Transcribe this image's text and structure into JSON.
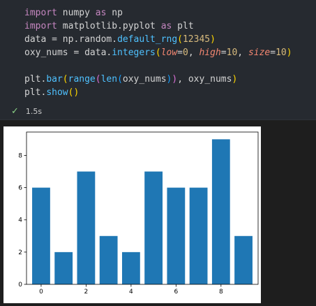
{
  "code_lines": [
    [
      {
        "t": "import",
        "c": "kw"
      },
      {
        "t": " numpy ",
        "c": "default"
      },
      {
        "t": "as",
        "c": "kw"
      },
      {
        "t": " np",
        "c": "default"
      }
    ],
    [
      {
        "t": "import",
        "c": "kw"
      },
      {
        "t": " matplotlib.pyplot ",
        "c": "default"
      },
      {
        "t": "as",
        "c": "kw"
      },
      {
        "t": " plt",
        "c": "default"
      }
    ],
    [
      {
        "t": "data = np.random.",
        "c": "default"
      },
      {
        "t": "default_rng",
        "c": "fn"
      },
      {
        "t": "(",
        "c": "paren"
      },
      {
        "t": "12345",
        "c": "num"
      },
      {
        "t": ")",
        "c": "paren"
      }
    ],
    [
      {
        "t": "oxy_nums = data.",
        "c": "default"
      },
      {
        "t": "integers",
        "c": "fn"
      },
      {
        "t": "(",
        "c": "paren"
      },
      {
        "t": "low",
        "c": "param"
      },
      {
        "t": "=",
        "c": "default"
      },
      {
        "t": "0",
        "c": "num"
      },
      {
        "t": ", ",
        "c": "default"
      },
      {
        "t": "high",
        "c": "param"
      },
      {
        "t": "=",
        "c": "default"
      },
      {
        "t": "10",
        "c": "num"
      },
      {
        "t": ", ",
        "c": "default"
      },
      {
        "t": "size",
        "c": "param"
      },
      {
        "t": "=",
        "c": "default"
      },
      {
        "t": "10",
        "c": "num"
      },
      {
        "t": ")",
        "c": "paren"
      }
    ],
    [],
    [
      {
        "t": "plt.",
        "c": "default"
      },
      {
        "t": "bar",
        "c": "fn"
      },
      {
        "t": "(",
        "c": "paren"
      },
      {
        "t": "range",
        "c": "fn"
      },
      {
        "t": "(",
        "c": "paren2"
      },
      {
        "t": "len",
        "c": "fn"
      },
      {
        "t": "(",
        "c": "paren3"
      },
      {
        "t": "oxy_nums",
        "c": "default"
      },
      {
        "t": ")",
        "c": "paren3"
      },
      {
        "t": ")",
        "c": "paren2"
      },
      {
        "t": ", oxy_nums",
        "c": "default"
      },
      {
        "t": ")",
        "c": "paren"
      }
    ],
    [
      {
        "t": "plt.",
        "c": "default"
      },
      {
        "t": "show",
        "c": "fn"
      },
      {
        "t": "()",
        "c": "paren"
      }
    ]
  ],
  "status": {
    "icon": "check-icon",
    "duration": "1.5s"
  },
  "colors": {
    "bar": "#1f77b4"
  },
  "chart_data": {
    "type": "bar",
    "categories": [
      0,
      1,
      2,
      3,
      4,
      5,
      6,
      7,
      8,
      9
    ],
    "values": [
      6,
      2,
      7,
      3,
      2,
      7,
      6,
      6,
      9,
      3
    ],
    "xticks": [
      "0",
      "2",
      "4",
      "6",
      "8"
    ],
    "xtick_values": [
      0,
      2,
      4,
      6,
      8
    ],
    "yticks": [
      "0",
      "2",
      "4",
      "6",
      "8"
    ],
    "ytick_values": [
      0,
      2,
      4,
      6,
      8
    ],
    "xlim": [
      -0.65,
      9.65
    ],
    "ylim": [
      0,
      9.45
    ],
    "grid": false,
    "legend": "none"
  }
}
